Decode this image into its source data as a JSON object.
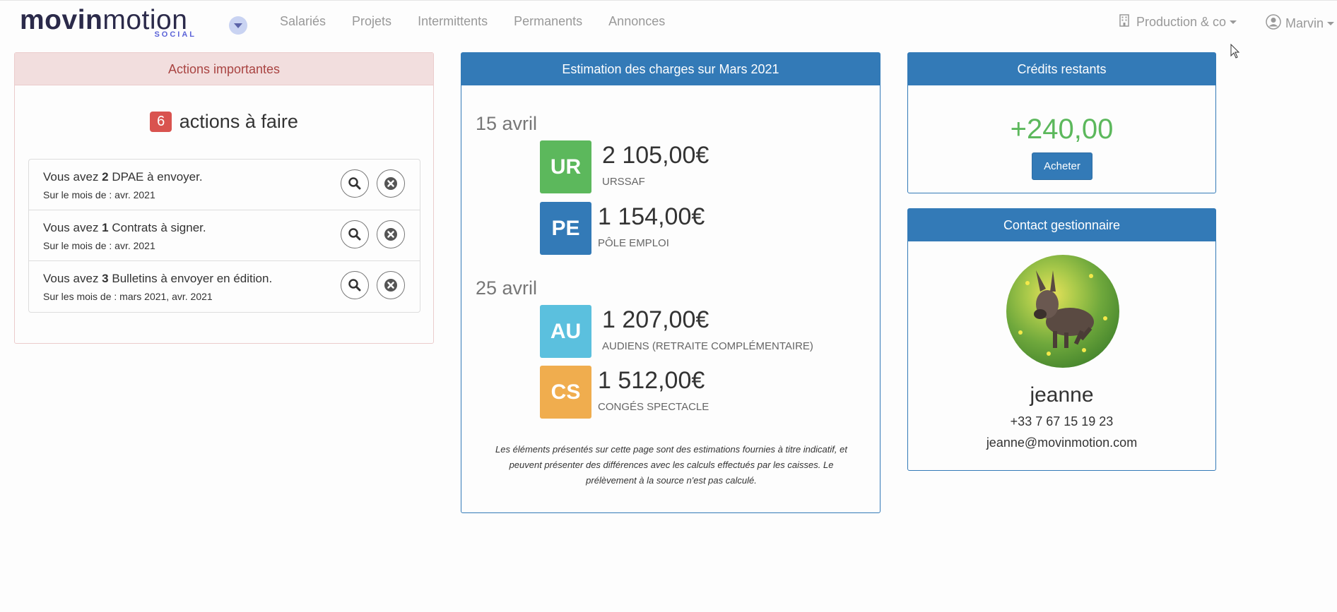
{
  "brand": {
    "name_bold": "movin",
    "name_light": "motion",
    "sub": "SOCIAL"
  },
  "nav": {
    "links": [
      "Salariés",
      "Projets",
      "Intermittents",
      "Permanents",
      "Annonces"
    ],
    "company": "Production & co",
    "user": "Marvin"
  },
  "actions_panel": {
    "title": "Actions importantes",
    "count": "6",
    "count_label": "actions à faire",
    "items": [
      {
        "prefix": "Vous avez ",
        "count": "2",
        "suffix": " DPAE à envoyer.",
        "sub": "Sur le mois de : avr. 2021"
      },
      {
        "prefix": "Vous avez ",
        "count": "1",
        "suffix": " Contrats à signer.",
        "sub": "Sur le mois de : avr. 2021"
      },
      {
        "prefix": "Vous avez ",
        "count": "3",
        "suffix": " Bulletins à envoyer en édition.",
        "sub": "Sur les mois de : mars 2021, avr. 2021"
      }
    ]
  },
  "estimation_panel": {
    "title": "Estimation des charges sur Mars 2021",
    "groups": [
      {
        "date": "15 avril",
        "charges": [
          {
            "code": "UR",
            "amount": "2 105,00€",
            "label": "URSSAF",
            "color": "#5cb85c"
          },
          {
            "code": "PE",
            "amount": "1 154,00€",
            "label": "PÔLE EMPLOI",
            "color": "#337ab7"
          }
        ]
      },
      {
        "date": "25 avril",
        "charges": [
          {
            "code": "AU",
            "amount": "1 207,00€",
            "label": "AUDIENS (RETRAITE COMPLÉMENTAIRE)",
            "color": "#5bc0de"
          },
          {
            "code": "CS",
            "amount": "1 512,00€",
            "label": "CONGÉS SPECTACLE",
            "color": "#f0ad4e"
          }
        ]
      }
    ],
    "disclaimer": "Les éléments présentés sur cette page sont des estimations fournies à titre indicatif, et peuvent présenter des différences avec les calculs effectués par les caisses. Le prélèvement à la source n'est pas calculé."
  },
  "credits_panel": {
    "title": "Crédits restants",
    "value": "+240,00",
    "buy_label": "Acheter"
  },
  "contact_panel": {
    "title": "Contact gestionnaire",
    "name": "jeanne",
    "phone": "+33 7 67 15 19 23",
    "email": "jeanne@movinmotion.com"
  },
  "icons": {
    "view": "search-icon",
    "dismiss": "close-icon",
    "company": "building-icon",
    "user": "user-circle-icon"
  }
}
